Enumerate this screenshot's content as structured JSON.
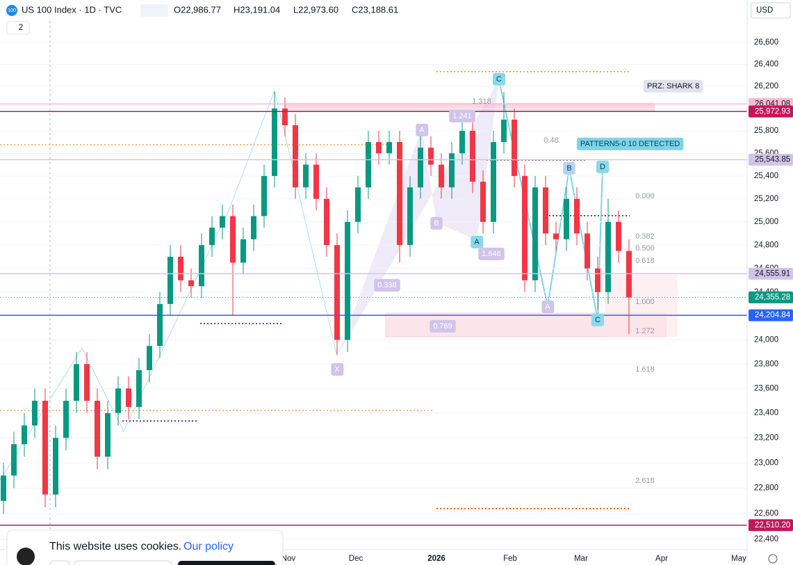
{
  "header": {
    "badge": "100",
    "symbol": "US 100 Index · 1D · TVC",
    "ohlc": [
      "O22,986.77",
      "H23,191.04",
      "L22,973.60",
      "C23,188.61"
    ],
    "indicator_count": "2",
    "currency": "USD"
  },
  "chart_data": {
    "type": "candlestick",
    "log_scale": true,
    "ylim": [
      22320,
      26800
    ],
    "up_color": "#089981",
    "down_color": "#f23645",
    "open": [
      22700,
      22900,
      23150,
      23300,
      23500,
      22750,
      23200,
      23500,
      23800,
      23500,
      23050,
      23400,
      23600,
      23450,
      23750,
      23950,
      24300,
      24700,
      24500,
      24450,
      24800,
      24950,
      25050,
      24650,
      24850,
      25050,
      25400,
      26000,
      25850,
      25300,
      25500,
      25200,
      24800,
      24000,
      25000,
      25300,
      25700,
      25600,
      25700,
      24800,
      25300,
      25650,
      25500,
      25300,
      25600,
      25800,
      25350,
      25000,
      25700,
      25900,
      25400,
      24500,
      25300,
      24900,
      24850,
      25200,
      24900,
      24600,
      24400,
      25000,
      24750
    ],
    "high": [
      23000,
      23250,
      23400,
      23600,
      23600,
      23300,
      23600,
      23900,
      23900,
      23600,
      23500,
      23700,
      23700,
      23850,
      24050,
      24400,
      24800,
      24800,
      24600,
      24900,
      25050,
      25150,
      25150,
      24950,
      25150,
      25500,
      26150,
      26100,
      25950,
      25600,
      25600,
      25300,
      24900,
      25100,
      25400,
      25800,
      25800,
      25800,
      25800,
      25400,
      25750,
      25750,
      25600,
      25700,
      25900,
      25900,
      25450,
      25800,
      26150,
      26000,
      25500,
      25400,
      25400,
      25000,
      25300,
      25300,
      25000,
      24700,
      25200,
      25100,
      24850
    ],
    "low": [
      22600,
      22800,
      23050,
      23200,
      22650,
      22650,
      23100,
      23400,
      23400,
      22950,
      22950,
      23300,
      23350,
      23350,
      23650,
      23850,
      24200,
      24400,
      24350,
      24350,
      24700,
      24850,
      24200,
      24550,
      24750,
      24950,
      25300,
      25750,
      25200,
      25200,
      25100,
      24700,
      23880,
      23900,
      24900,
      25200,
      25500,
      25500,
      24650,
      24700,
      25200,
      25400,
      25200,
      25200,
      25500,
      25250,
      24900,
      24900,
      25600,
      25300,
      24400,
      24400,
      24800,
      24750,
      24750,
      24800,
      24500,
      24250,
      24300,
      24650,
      24050
    ],
    "close": [
      22900,
      23150,
      23300,
      23500,
      22750,
      23200,
      23500,
      23800,
      23500,
      23050,
      23400,
      23600,
      23450,
      23750,
      23950,
      24300,
      24700,
      24500,
      24450,
      24800,
      24950,
      25050,
      24650,
      24850,
      25050,
      25400,
      26000,
      25850,
      25300,
      25500,
      25200,
      24800,
      24000,
      25000,
      25300,
      25700,
      25600,
      25700,
      24800,
      25300,
      25650,
      25500,
      25300,
      25600,
      25800,
      25350,
      25000,
      25700,
      25900,
      25400,
      24500,
      25300,
      24900,
      24850,
      25200,
      24900,
      24600,
      24400,
      25000,
      24750,
      24355.28
    ],
    "yticks": [
      {
        "value": 22400,
        "label": "22,400"
      },
      {
        "value": 22600,
        "label": "22,600"
      },
      {
        "value": 22800,
        "label": "22,800"
      },
      {
        "value": 23000,
        "label": "23,000"
      },
      {
        "value": 23200,
        "label": "23,200"
      },
      {
        "value": 23400,
        "label": "23,400"
      },
      {
        "value": 23600,
        "label": "23,600"
      },
      {
        "value": 23800,
        "label": "23,800"
      },
      {
        "value": 24000,
        "label": "24,000"
      },
      {
        "value": 24200,
        "label": "24,200"
      },
      {
        "value": 24400,
        "label": "24,400"
      },
      {
        "value": 24600,
        "label": "24,600"
      },
      {
        "value": 24800,
        "label": "24,800"
      },
      {
        "value": 25000,
        "label": "25,000"
      },
      {
        "value": 25200,
        "label": "25,200"
      },
      {
        "value": 25400,
        "label": "25,400"
      },
      {
        "value": 25600,
        "label": "25,600"
      },
      {
        "value": 25800,
        "label": "25,800"
      },
      {
        "value": 26000,
        "label": "26,000"
      },
      {
        "value": 26200,
        "label": "26,200"
      },
      {
        "value": 26400,
        "label": "26,400"
      },
      {
        "value": 26600,
        "label": "26,600"
      }
    ],
    "price_levels": [
      {
        "value": 26041.08,
        "label": "26,041.08",
        "color": "#f8bbd0"
      },
      {
        "value": 25972.93,
        "label": "25,972.93",
        "color": "#c2185b"
      },
      {
        "value": 25543.85,
        "label": "25,543.85",
        "color": "#d1c4e9"
      },
      {
        "value": 24555.91,
        "label": "24,555.91",
        "color": "#d1c4e9"
      },
      {
        "value": 24355.28,
        "label": "24,355.28",
        "color": "#089981"
      },
      {
        "value": 24204.84,
        "label": "24,204.84",
        "color": "#2962ff"
      },
      {
        "value": 22510.2,
        "label": "22,510.20",
        "color": "#c2185b"
      }
    ],
    "x_labels": [
      "Nov",
      "Dec",
      "2026",
      "Feb",
      "Mar",
      "Apr",
      "May"
    ],
    "annotations": [
      "PRZ: SHARK 8",
      "PATTERN5-0 10 DETECTED",
      "X",
      "A",
      "B",
      "C",
      "A",
      "B",
      "D",
      "C",
      "A",
      "0.338",
      "0.769",
      "1.648",
      "1.241",
      "1.318",
      "0.48",
      "0.000",
      "0.382",
      "0.500",
      "0.618",
      "1.000",
      "1.272",
      "1.618",
      "2.618"
    ]
  },
  "cookie_banner": {
    "text": "This website uses cookies.",
    "link": "Our policy"
  }
}
